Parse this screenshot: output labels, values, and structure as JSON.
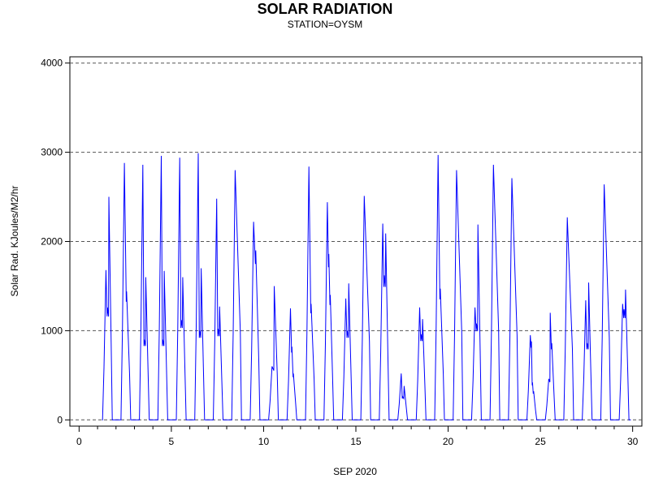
{
  "chart_data": {
    "type": "line",
    "title": "SOLAR RADIATION",
    "subtitle": "STATION=OYSM",
    "xlabel": "SEP 2020",
    "ylabel": "Solar Rad. KJoules/M2/hr",
    "xlim": [
      -0.5,
      30.5
    ],
    "ylim": [
      -70,
      4070
    ],
    "xticks": [
      0,
      5,
      10,
      15,
      20,
      25,
      30
    ],
    "yticks": [
      0,
      1000,
      2000,
      3000,
      4000
    ],
    "grid": "horizontal dashed",
    "line_color": "#0000ff",
    "series": [
      {
        "daily_peaks": [
          {
            "day": 1,
            "values": [
              1680,
              1260,
              2500
            ]
          },
          {
            "day": 2,
            "values": [
              2880,
              1440
            ]
          },
          {
            "day": 3,
            "values": [
              2860,
              900,
              1600
            ]
          },
          {
            "day": 4,
            "values": [
              2960,
              900,
              1670
            ]
          },
          {
            "day": 5,
            "values": [
              2940,
              1120,
              1600
            ]
          },
          {
            "day": 6,
            "values": [
              2990,
              1000,
              1700
            ]
          },
          {
            "day": 7,
            "values": [
              2480,
              1020,
              1270
            ]
          },
          {
            "day": 8,
            "values": [
              2800
            ]
          },
          {
            "day": 9,
            "values": [
              2220,
              1900
            ]
          },
          {
            "day": 10,
            "values": [
              600,
              1500
            ]
          },
          {
            "day": 11,
            "values": [
              1250,
              820,
              520
            ]
          },
          {
            "day": 12,
            "values": [
              2840,
              1300
            ]
          },
          {
            "day": 13,
            "values": [
              2440,
              1860,
              1400
            ]
          },
          {
            "day": 14,
            "values": [
              1360,
              1000,
              1530
            ]
          },
          {
            "day": 15,
            "values": [
              2510
            ]
          },
          {
            "day": 16,
            "values": [
              2200,
              1620,
              2090
            ]
          },
          {
            "day": 17,
            "values": [
              520,
              260,
              380
            ]
          },
          {
            "day": 18,
            "values": [
              1260,
              960,
              1130
            ]
          },
          {
            "day": 19,
            "values": [
              2970,
              1470
            ]
          },
          {
            "day": 20,
            "values": [
              2800
            ]
          },
          {
            "day": 21,
            "values": [
              1260,
              1080,
              2190
            ]
          },
          {
            "day": 22,
            "values": [
              2860
            ]
          },
          {
            "day": 23,
            "values": [
              2710
            ]
          },
          {
            "day": 24,
            "values": [
              950,
              880,
              420,
              320
            ]
          },
          {
            "day": 25,
            "values": [
              460,
              1200,
              860
            ]
          },
          {
            "day": 26,
            "values": [
              2270
            ]
          },
          {
            "day": 27,
            "values": [
              1340,
              860,
              1540
            ]
          },
          {
            "day": 28,
            "values": [
              2640
            ]
          },
          {
            "day": 29,
            "values": [
              1300,
              1240,
              1460
            ]
          }
        ]
      }
    ]
  }
}
